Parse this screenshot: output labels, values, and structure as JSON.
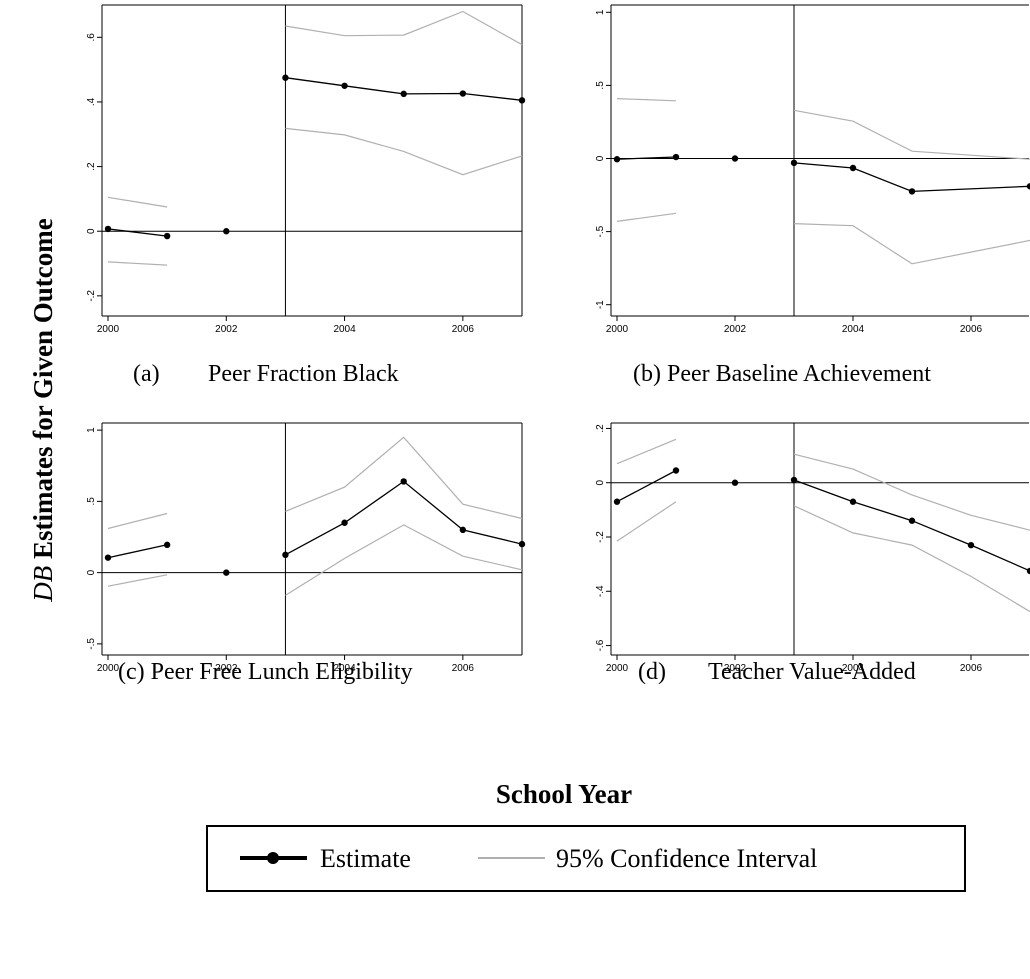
{
  "figure": {
    "y_axis_title_italic": "DB",
    "y_axis_title_rest": " Estimates for Given Outcome",
    "x_axis_title": "School Year",
    "legend": {
      "estimate_label": "Estimate",
      "ci_label": "95% Confidence Interval"
    },
    "colors": {
      "estimate": "#000000",
      "ci": "#b0b0b0",
      "axes": "#000000"
    }
  },
  "chart_data": [
    {
      "type": "line",
      "caption_letter": "(a)",
      "caption_title": "Peer Fraction Black",
      "xlim": [
        2000,
        2007
      ],
      "ylim": [
        -0.25,
        0.7
      ],
      "x_ticks": [
        2000,
        2002,
        2004,
        2006
      ],
      "y_ticks": [
        {
          "v": -0.2,
          "label": "-.2"
        },
        {
          "v": 0,
          "label": "0"
        },
        {
          "v": 0.2,
          "label": ".2"
        },
        {
          "v": 0.4,
          "label": ".4"
        },
        {
          "v": 0.6,
          "label": ".6"
        }
      ],
      "reference_year": 2003,
      "zero_line": 0,
      "series": [
        {
          "role": "estimate",
          "segments": [
            [
              [
                2000,
                0.007
              ],
              [
                2001,
                -0.015
              ]
            ],
            [
              [
                2002,
                0.0
              ]
            ],
            [
              [
                2003,
                0.475
              ],
              [
                2004,
                0.45
              ],
              [
                2005,
                0.425
              ],
              [
                2006,
                0.426
              ],
              [
                2007,
                0.405
              ]
            ]
          ]
        },
        {
          "role": "ci_upper",
          "segments": [
            [
              [
                2000,
                0.105
              ],
              [
                2001,
                0.075
              ]
            ],
            [
              [
                2003,
                0.635
              ],
              [
                2004,
                0.605
              ],
              [
                2005,
                0.607
              ],
              [
                2006,
                0.68
              ],
              [
                2007,
                0.577
              ]
            ]
          ]
        },
        {
          "role": "ci_lower",
          "segments": [
            [
              [
                2000,
                -0.095
              ],
              [
                2001,
                -0.105
              ]
            ],
            [
              [
                2003,
                0.318
              ],
              [
                2004,
                0.298
              ],
              [
                2005,
                0.247
              ],
              [
                2006,
                0.175
              ],
              [
                2007,
                0.233
              ]
            ]
          ]
        }
      ]
    },
    {
      "type": "line",
      "caption_letter": "",
      "caption_title": "(b) Peer Baseline Achievement",
      "xlim": [
        2000,
        2007
      ],
      "ylim": [
        -1.05,
        1.05
      ],
      "x_ticks": [
        2000,
        2002,
        2004,
        2006
      ],
      "y_ticks": [
        {
          "v": -1,
          "label": "-1"
        },
        {
          "v": -0.5,
          "label": "-.5"
        },
        {
          "v": 0,
          "label": "0"
        },
        {
          "v": 0.5,
          "label": ".5"
        },
        {
          "v": 1,
          "label": "1"
        }
      ],
      "reference_year": 2003,
      "zero_line": 0,
      "series": [
        {
          "role": "estimate",
          "segments": [
            [
              [
                2000,
                -0.005
              ],
              [
                2001,
                0.01
              ]
            ],
            [
              [
                2002,
                0.0
              ]
            ],
            [
              [
                2003,
                -0.03
              ],
              [
                2004,
                -0.065
              ],
              [
                2005,
                -0.225
              ],
              [
                2007,
                -0.19
              ]
            ]
          ]
        },
        {
          "role": "ci_upper",
          "segments": [
            [
              [
                2000,
                0.41
              ],
              [
                2001,
                0.395
              ]
            ],
            [
              [
                2003,
                0.33
              ],
              [
                2004,
                0.255
              ],
              [
                2005,
                0.05
              ],
              [
                2007,
                -0.005
              ]
            ]
          ]
        },
        {
          "role": "ci_lower",
          "segments": [
            [
              [
                2000,
                -0.43
              ],
              [
                2001,
                -0.375
              ]
            ],
            [
              [
                2003,
                -0.445
              ],
              [
                2004,
                -0.46
              ],
              [
                2005,
                -0.72
              ],
              [
                2007,
                -0.56
              ]
            ]
          ]
        }
      ]
    },
    {
      "type": "line",
      "caption_letter": "",
      "caption_title": "(c) Peer Free Lunch Eligibility",
      "xlim": [
        2000,
        2007
      ],
      "ylim": [
        -0.55,
        1.05
      ],
      "x_ticks": [
        2000,
        2002,
        2004,
        2006
      ],
      "y_ticks": [
        {
          "v": -0.5,
          "label": "-.5"
        },
        {
          "v": 0,
          "label": "0"
        },
        {
          "v": 0.5,
          "label": ".5"
        },
        {
          "v": 1,
          "label": "1"
        }
      ],
      "reference_year": 2003,
      "zero_line": 0,
      "series": [
        {
          "role": "estimate",
          "segments": [
            [
              [
                2000,
                0.105
              ],
              [
                2001,
                0.195
              ]
            ],
            [
              [
                2002,
                0.0
              ]
            ],
            [
              [
                2003,
                0.125
              ],
              [
                2004,
                0.35
              ],
              [
                2005,
                0.64
              ],
              [
                2006,
                0.3
              ],
              [
                2007,
                0.2
              ]
            ]
          ]
        },
        {
          "role": "ci_upper",
          "segments": [
            [
              [
                2000,
                0.31
              ],
              [
                2001,
                0.415
              ]
            ],
            [
              [
                2003,
                0.43
              ],
              [
                2004,
                0.6
              ],
              [
                2005,
                0.95
              ],
              [
                2006,
                0.48
              ],
              [
                2007,
                0.38
              ]
            ]
          ]
        },
        {
          "role": "ci_lower",
          "segments": [
            [
              [
                2000,
                -0.095
              ],
              [
                2001,
                -0.015
              ]
            ],
            [
              [
                2003,
                -0.16
              ],
              [
                2004,
                0.1
              ],
              [
                2005,
                0.335
              ],
              [
                2006,
                0.115
              ],
              [
                2007,
                0.02
              ]
            ]
          ]
        }
      ]
    },
    {
      "type": "line",
      "caption_letter": "(d)",
      "caption_title": "Teacher Value-Added",
      "xlim": [
        2000,
        2007
      ],
      "ylim": [
        -0.62,
        0.22
      ],
      "x_ticks": [
        2000,
        2002,
        2004,
        2006
      ],
      "y_ticks": [
        {
          "v": -0.6,
          "label": "-.6"
        },
        {
          "v": -0.4,
          "label": "-.4"
        },
        {
          "v": -0.2,
          "label": "-.2"
        },
        {
          "v": 0,
          "label": "0"
        },
        {
          "v": 0.2,
          "label": ".2"
        }
      ],
      "reference_year": 2003,
      "zero_line": 0,
      "series": [
        {
          "role": "estimate",
          "segments": [
            [
              [
                2000,
                -0.07
              ],
              [
                2001,
                0.045
              ]
            ],
            [
              [
                2002,
                0.0
              ]
            ],
            [
              [
                2003,
                0.01
              ],
              [
                2004,
                -0.07
              ],
              [
                2005,
                -0.14
              ],
              [
                2006,
                -0.23
              ],
              [
                2007,
                -0.325
              ]
            ]
          ]
        },
        {
          "role": "ci_upper",
          "segments": [
            [
              [
                2000,
                0.07
              ],
              [
                2001,
                0.16
              ]
            ],
            [
              [
                2003,
                0.105
              ],
              [
                2004,
                0.05
              ],
              [
                2005,
                -0.045
              ],
              [
                2006,
                -0.12
              ],
              [
                2007,
                -0.175
              ]
            ]
          ]
        },
        {
          "role": "ci_lower",
          "segments": [
            [
              [
                2000,
                -0.215
              ],
              [
                2001,
                -0.07
              ]
            ],
            [
              [
                2003,
                -0.085
              ],
              [
                2004,
                -0.185
              ],
              [
                2005,
                -0.23
              ],
              [
                2006,
                -0.345
              ],
              [
                2007,
                -0.475
              ]
            ]
          ]
        }
      ]
    }
  ]
}
